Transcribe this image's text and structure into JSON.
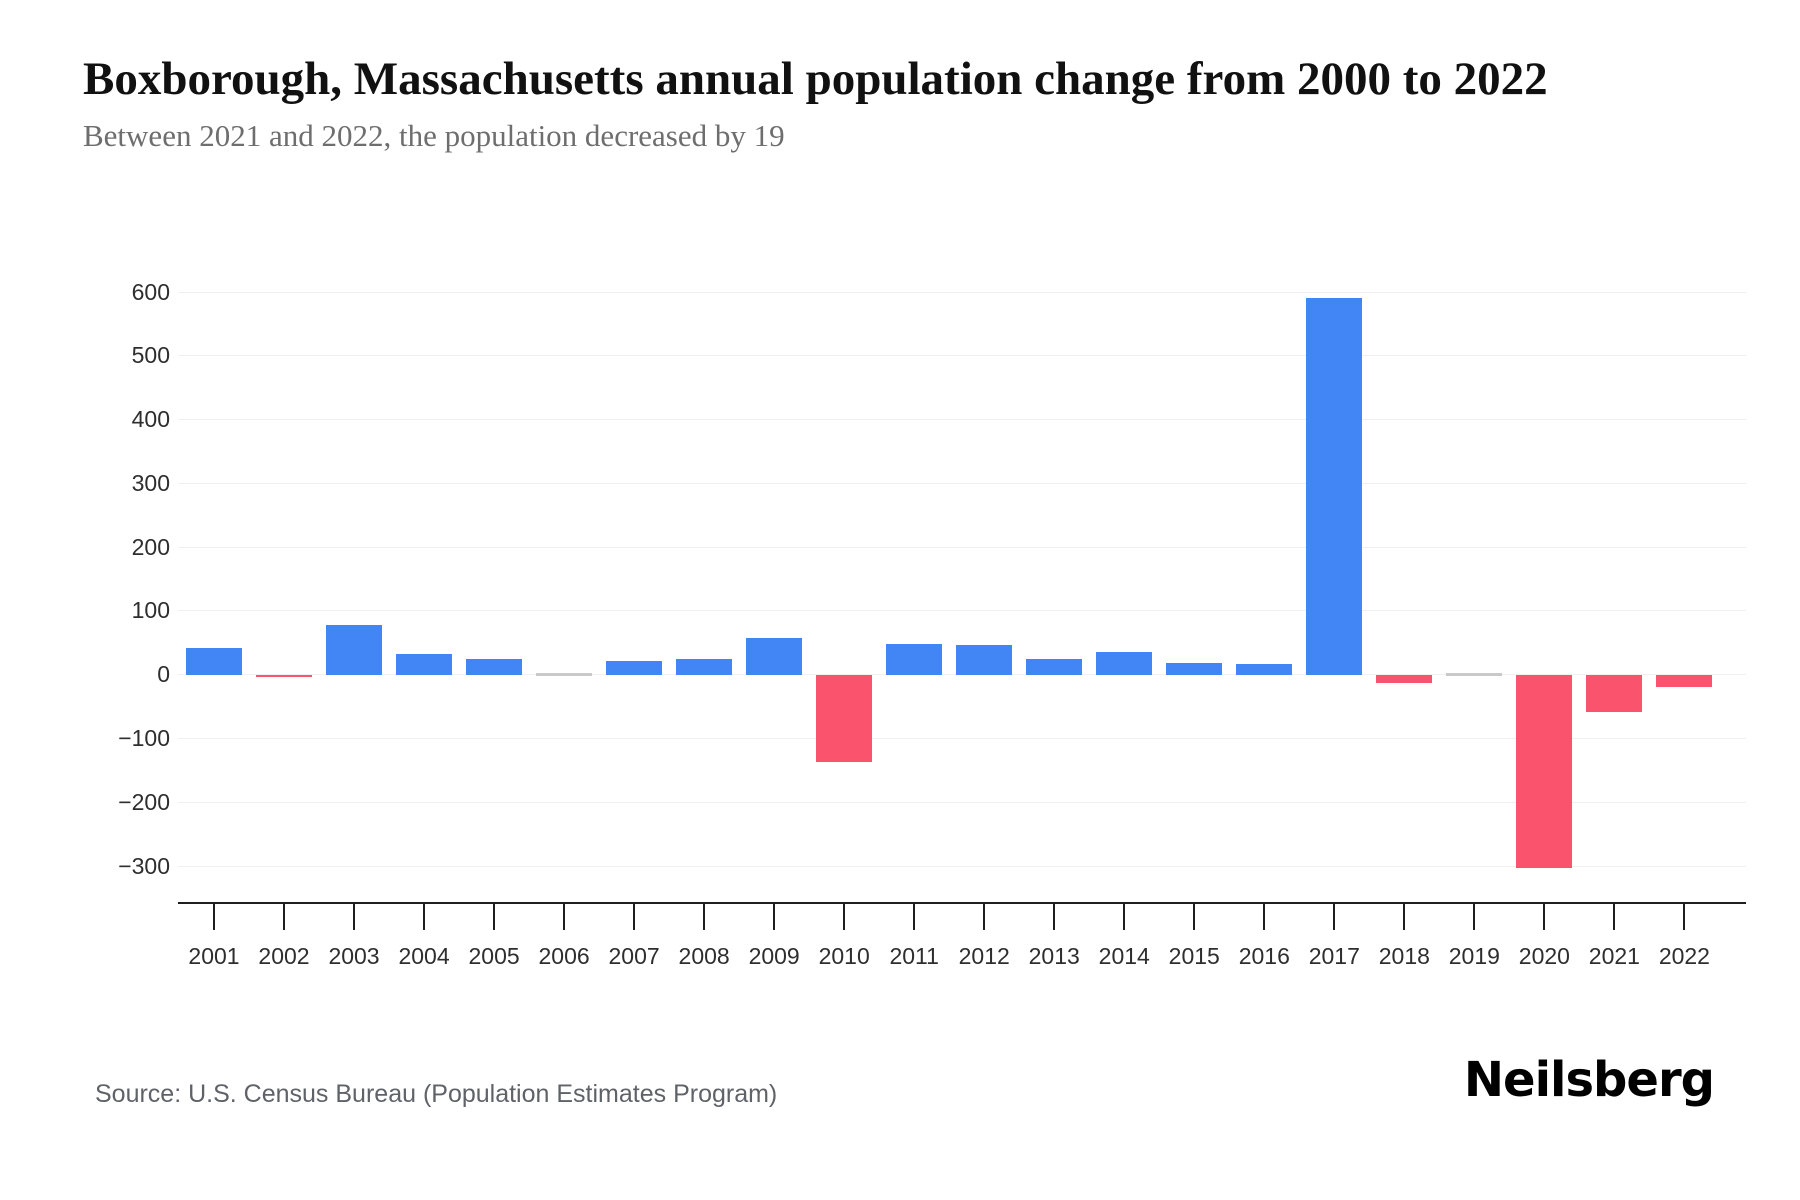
{
  "header": {
    "title": "Boxborough, Massachusetts annual population change from 2000 to 2022",
    "subtitle": "Between 2021 and 2022, the population decreased by 19"
  },
  "footer": {
    "source": "Source: U.S. Census Bureau (Population Estimates Program)",
    "logo": "Neilsberg"
  },
  "chart_data": {
    "type": "bar",
    "title": "Boxborough, Massachusetts annual population change from 2000 to 2022",
    "subtitle": "Between 2021 and 2022, the population decreased by 19",
    "categories": [
      "2001",
      "2002",
      "2003",
      "2004",
      "2005",
      "2006",
      "2007",
      "2008",
      "2009",
      "2010",
      "2011",
      "2012",
      "2013",
      "2014",
      "2015",
      "2016",
      "2017",
      "2018",
      "2019",
      "2020",
      "2021",
      "2022"
    ],
    "values": [
      42,
      -4,
      78,
      33,
      25,
      2,
      22,
      25,
      57,
      -137,
      48,
      46,
      24,
      35,
      18,
      17,
      590,
      -13,
      -2,
      -303,
      -58,
      -19
    ],
    "ytick_labels": [
      "600",
      "500",
      "400",
      "300",
      "200",
      "100",
      "0",
      "−100",
      "−200",
      "−300"
    ],
    "ytick_values": [
      600,
      500,
      400,
      300,
      200,
      100,
      0,
      -100,
      -200,
      -300
    ],
    "ylim": [
      -300,
      600
    ],
    "xlabel": "",
    "ylabel": "",
    "legend": "none",
    "grid": "horizontal-only",
    "colors": {
      "positive_bar": "#4285F4",
      "negative_bar": "#F9536E",
      "near_zero_bar": "#c9c9c9",
      "gridline": "#f0f0f0",
      "axis": "#1f1f1f",
      "tick_text": "#2e2e2e"
    }
  }
}
